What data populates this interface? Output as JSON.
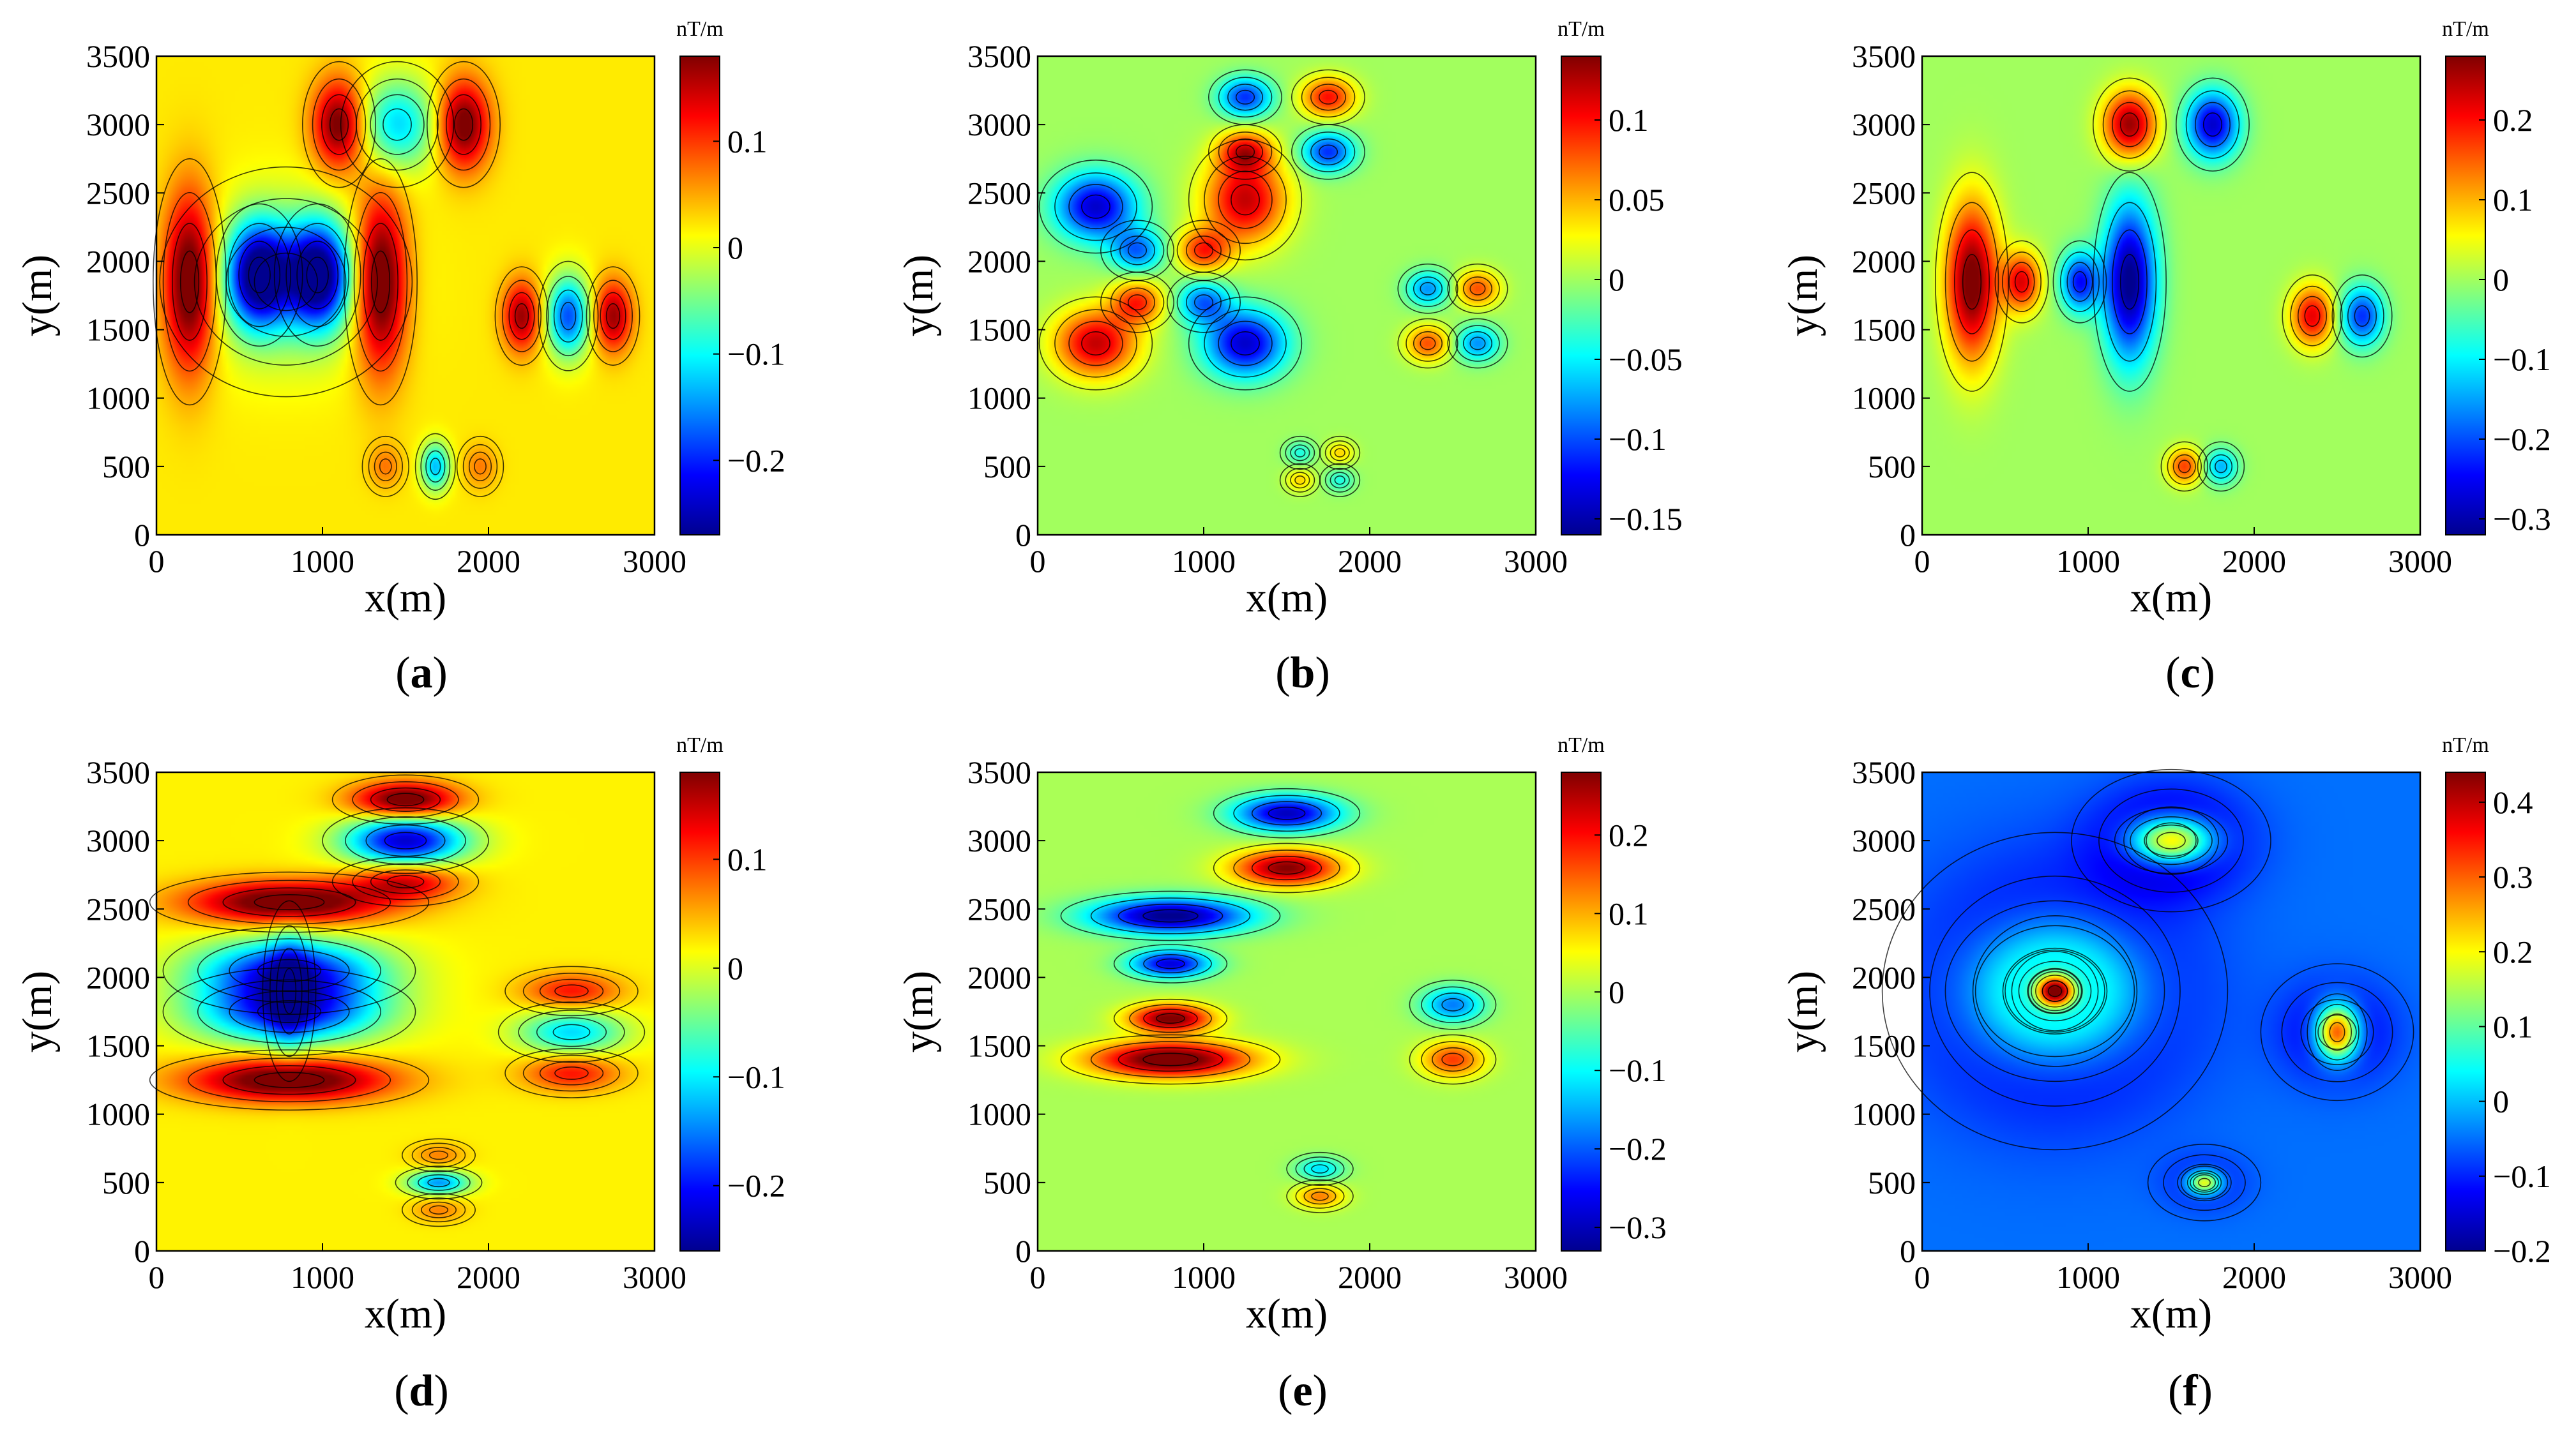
{
  "figure": {
    "label_parens": [
      "(",
      ")"
    ]
  },
  "colormap": [
    "#00008f",
    "#0000ff",
    "#0080ff",
    "#00ffff",
    "#80ff80",
    "#ffff00",
    "#ff8000",
    "#ff0000",
    "#800000"
  ],
  "chart_data": [
    {
      "id": "a",
      "type": "heatmap",
      "panel_label": "a",
      "xlabel": "x(m)",
      "ylabel": "y(m)",
      "xlim": [
        0,
        3000
      ],
      "ylim": [
        0,
        3500
      ],
      "xticks": [
        "0",
        "1000",
        "2000",
        "3000"
      ],
      "yticks": [
        "0",
        "500",
        "1000",
        "1500",
        "2000",
        "2500",
        "3000",
        "3500"
      ],
      "colorbar": {
        "unit": "nT/m",
        "range": [
          -0.27,
          0.18
        ],
        "ticks": [
          0.1,
          0,
          -0.1,
          -0.2
        ],
        "tick_labels": [
          "0.1",
          "0",
          "−0.1",
          "−0.2"
        ]
      },
      "background_value": 0.02,
      "anomalies": [
        {
          "x": 200,
          "y": 1850,
          "sx": 110,
          "sy": 450,
          "amp": 0.21
        },
        {
          "x": 1350,
          "y": 1850,
          "sx": 110,
          "sy": 450,
          "amp": 0.21
        },
        {
          "x": 620,
          "y": 1900,
          "sx": 130,
          "sy": 260,
          "amp": -0.29
        },
        {
          "x": 970,
          "y": 1900,
          "sx": 130,
          "sy": 260,
          "amp": -0.29
        },
        {
          "x": 780,
          "y": 1850,
          "sx": 380,
          "sy": 420,
          "amp": -0.07
        },
        {
          "x": 1100,
          "y": 3000,
          "sx": 110,
          "sy": 230,
          "amp": 0.18
        },
        {
          "x": 1850,
          "y": 3000,
          "sx": 110,
          "sy": 230,
          "amp": 0.18
        },
        {
          "x": 1450,
          "y": 3000,
          "sx": 170,
          "sy": 230,
          "amp": -0.14
        },
        {
          "x": 2200,
          "y": 1600,
          "sx": 80,
          "sy": 180,
          "amp": 0.15
        },
        {
          "x": 2750,
          "y": 1600,
          "sx": 80,
          "sy": 180,
          "amp": 0.15
        },
        {
          "x": 2480,
          "y": 1600,
          "sx": 90,
          "sy": 200,
          "amp": -0.2
        },
        {
          "x": 1380,
          "y": 500,
          "sx": 70,
          "sy": 110,
          "amp": 0.05
        },
        {
          "x": 1950,
          "y": 500,
          "sx": 70,
          "sy": 110,
          "amp": 0.05
        },
        {
          "x": 1680,
          "y": 500,
          "sx": 60,
          "sy": 120,
          "amp": -0.15
        }
      ]
    },
    {
      "id": "b",
      "type": "heatmap",
      "panel_label": "b",
      "xlabel": "x(m)",
      "ylabel": "y(m)",
      "xlim": [
        0,
        3000
      ],
      "ylim": [
        0,
        3500
      ],
      "xticks": [
        "0",
        "1000",
        "2000",
        "3000"
      ],
      "yticks": [
        "0",
        "500",
        "1000",
        "1500",
        "2000",
        "2500",
        "3000",
        "3500"
      ],
      "colorbar": {
        "unit": "nT/m",
        "range": [
          -0.16,
          0.14
        ],
        "ticks": [
          0.1,
          0.05,
          0,
          -0.05,
          -0.1,
          -0.15
        ],
        "tick_labels": [
          "0.1",
          "0.05",
          "0",
          "−0.05",
          "−0.1",
          "−0.15"
        ]
      },
      "background_value": 0.0,
      "anomalies": [
        {
          "x": 350,
          "y": 2400,
          "sx": 170,
          "sy": 170,
          "amp": -0.14
        },
        {
          "x": 600,
          "y": 2080,
          "sx": 110,
          "sy": 110,
          "amp": -0.09
        },
        {
          "x": 1250,
          "y": 2450,
          "sx": 170,
          "sy": 220,
          "amp": 0.12
        },
        {
          "x": 1000,
          "y": 2080,
          "sx": 110,
          "sy": 110,
          "amp": 0.09
        },
        {
          "x": 350,
          "y": 1400,
          "sx": 170,
          "sy": 170,
          "amp": 0.12
        },
        {
          "x": 600,
          "y": 1700,
          "sx": 110,
          "sy": 110,
          "amp": 0.09
        },
        {
          "x": 1250,
          "y": 1400,
          "sx": 170,
          "sy": 170,
          "amp": -0.14
        },
        {
          "x": 1000,
          "y": 1700,
          "sx": 110,
          "sy": 110,
          "amp": -0.09
        },
        {
          "x": 1250,
          "y": 3200,
          "sx": 110,
          "sy": 100,
          "amp": -0.11
        },
        {
          "x": 1750,
          "y": 3200,
          "sx": 110,
          "sy": 100,
          "amp": 0.1
        },
        {
          "x": 1750,
          "y": 2800,
          "sx": 110,
          "sy": 100,
          "amp": -0.11
        },
        {
          "x": 1250,
          "y": 2800,
          "sx": 110,
          "sy": 100,
          "amp": 0.1
        },
        {
          "x": 2350,
          "y": 1800,
          "sx": 90,
          "sy": 90,
          "amp": -0.08
        },
        {
          "x": 2650,
          "y": 1800,
          "sx": 90,
          "sy": 90,
          "amp": 0.08
        },
        {
          "x": 2650,
          "y": 1400,
          "sx": 90,
          "sy": 90,
          "amp": -0.08
        },
        {
          "x": 2350,
          "y": 1400,
          "sx": 90,
          "sy": 90,
          "amp": 0.08
        },
        {
          "x": 1580,
          "y": 600,
          "sx": 60,
          "sy": 60,
          "amp": -0.04
        },
        {
          "x": 1820,
          "y": 600,
          "sx": 60,
          "sy": 60,
          "amp": 0.04
        },
        {
          "x": 1820,
          "y": 400,
          "sx": 60,
          "sy": 60,
          "amp": -0.04
        },
        {
          "x": 1580,
          "y": 400,
          "sx": 60,
          "sy": 60,
          "amp": 0.04
        }
      ]
    },
    {
      "id": "c",
      "type": "heatmap",
      "panel_label": "c",
      "xlabel": "x(m)",
      "ylabel": "y(m)",
      "xlim": [
        0,
        3000
      ],
      "ylim": [
        0,
        3500
      ],
      "xticks": [
        "0",
        "1000",
        "2000",
        "3000"
      ],
      "yticks": [
        "0",
        "500",
        "1000",
        "1500",
        "2000",
        "2500",
        "3000",
        "3500"
      ],
      "colorbar": {
        "unit": "nT/m",
        "range": [
          -0.32,
          0.28
        ],
        "ticks": [
          0.2,
          0.1,
          0,
          -0.1,
          -0.2,
          -0.3
        ],
        "tick_labels": [
          "0.2",
          "0.1",
          "0",
          "−0.1",
          "−0.2",
          "−0.3"
        ]
      },
      "background_value": 0.0,
      "anomalies": [
        {
          "x": 300,
          "y": 1850,
          "sx": 110,
          "sy": 400,
          "amp": 0.3
        },
        {
          "x": 600,
          "y": 1850,
          "sx": 80,
          "sy": 150,
          "amp": 0.22
        },
        {
          "x": 950,
          "y": 1850,
          "sx": 80,
          "sy": 150,
          "amp": -0.24
        },
        {
          "x": 1250,
          "y": 1850,
          "sx": 110,
          "sy": 400,
          "amp": -0.33
        },
        {
          "x": 1250,
          "y": 3000,
          "sx": 110,
          "sy": 170,
          "amp": 0.27
        },
        {
          "x": 1750,
          "y": 3000,
          "sx": 110,
          "sy": 170,
          "amp": -0.28
        },
        {
          "x": 2350,
          "y": 1600,
          "sx": 90,
          "sy": 150,
          "amp": 0.22
        },
        {
          "x": 2650,
          "y": 1600,
          "sx": 90,
          "sy": 150,
          "amp": -0.22
        },
        {
          "x": 1580,
          "y": 500,
          "sx": 70,
          "sy": 90,
          "amp": 0.17
        },
        {
          "x": 1800,
          "y": 500,
          "sx": 70,
          "sy": 90,
          "amp": -0.14
        }
      ]
    },
    {
      "id": "d",
      "type": "heatmap",
      "panel_label": "d",
      "xlabel": "x(m)",
      "ylabel": "y(m)",
      "xlim": [
        0,
        3000
      ],
      "ylim": [
        0,
        3500
      ],
      "xticks": [
        "0",
        "1000",
        "2000",
        "3000"
      ],
      "yticks": [
        "0",
        "500",
        "1000",
        "1500",
        "2000",
        "2500",
        "3000",
        "3500"
      ],
      "colorbar": {
        "unit": "nT/m",
        "range": [
          -0.26,
          0.18
        ],
        "ticks": [
          0.1,
          0,
          -0.1,
          -0.2
        ],
        "tick_labels": [
          "0.1",
          "0",
          "−0.1",
          "−0.2"
        ]
      },
      "background_value": 0.02,
      "anomalies": [
        {
          "x": 800,
          "y": 2550,
          "sx": 420,
          "sy": 110,
          "amp": 0.2
        },
        {
          "x": 800,
          "y": 1250,
          "sx": 420,
          "sy": 110,
          "amp": 0.2
        },
        {
          "x": 800,
          "y": 1750,
          "sx": 380,
          "sy": 160,
          "amp": -0.22
        },
        {
          "x": 800,
          "y": 2050,
          "sx": 380,
          "sy": 160,
          "amp": -0.22
        },
        {
          "x": 800,
          "y": 1900,
          "sx": 80,
          "sy": 330,
          "amp": -0.08
        },
        {
          "x": 1500,
          "y": 3300,
          "sx": 220,
          "sy": 90,
          "amp": 0.19
        },
        {
          "x": 1500,
          "y": 3000,
          "sx": 250,
          "sy": 120,
          "amp": -0.25
        },
        {
          "x": 1500,
          "y": 2700,
          "sx": 220,
          "sy": 90,
          "amp": 0.12
        },
        {
          "x": 2500,
          "y": 1900,
          "sx": 200,
          "sy": 90,
          "amp": 0.1
        },
        {
          "x": 2500,
          "y": 1600,
          "sx": 220,
          "sy": 110,
          "amp": -0.13
        },
        {
          "x": 2500,
          "y": 1300,
          "sx": 200,
          "sy": 90,
          "amp": 0.1
        },
        {
          "x": 1700,
          "y": 700,
          "sx": 110,
          "sy": 60,
          "amp": 0.05
        },
        {
          "x": 1700,
          "y": 500,
          "sx": 130,
          "sy": 60,
          "amp": -0.16
        },
        {
          "x": 1700,
          "y": 300,
          "sx": 110,
          "sy": 60,
          "amp": 0.05
        }
      ]
    },
    {
      "id": "e",
      "type": "heatmap",
      "panel_label": "e",
      "xlabel": "x(m)",
      "ylabel": "y(m)",
      "xlim": [
        0,
        3000
      ],
      "ylim": [
        0,
        3500
      ],
      "xticks": [
        "0",
        "1000",
        "2000",
        "3000"
      ],
      "yticks": [
        "0",
        "500",
        "1000",
        "1500",
        "2000",
        "2500",
        "3000",
        "3500"
      ],
      "colorbar": {
        "unit": "nT/m",
        "range": [
          -0.33,
          0.28
        ],
        "ticks": [
          0.2,
          0.1,
          0,
          -0.1,
          -0.2,
          -0.3
        ],
        "tick_labels": [
          "0.2",
          "0.1",
          "0",
          "−0.1",
          "−0.2",
          "−0.3"
        ]
      },
      "background_value": 0.0,
      "anomalies": [
        {
          "x": 800,
          "y": 2450,
          "sx": 330,
          "sy": 90,
          "amp": -0.34
        },
        {
          "x": 800,
          "y": 2100,
          "sx": 170,
          "sy": 70,
          "amp": -0.28
        },
        {
          "x": 800,
          "y": 1700,
          "sx": 170,
          "sy": 70,
          "amp": 0.3
        },
        {
          "x": 800,
          "y": 1400,
          "sx": 330,
          "sy": 90,
          "amp": 0.33
        },
        {
          "x": 1500,
          "y": 3200,
          "sx": 220,
          "sy": 90,
          "amp": -0.3
        },
        {
          "x": 1500,
          "y": 2800,
          "sx": 220,
          "sy": 90,
          "amp": 0.28
        },
        {
          "x": 2500,
          "y": 1800,
          "sx": 130,
          "sy": 90,
          "amp": -0.18
        },
        {
          "x": 2500,
          "y": 1400,
          "sx": 130,
          "sy": 90,
          "amp": 0.17
        },
        {
          "x": 1700,
          "y": 600,
          "sx": 100,
          "sy": 60,
          "amp": -0.12
        },
        {
          "x": 1700,
          "y": 400,
          "sx": 100,
          "sy": 60,
          "amp": 0.13
        }
      ]
    },
    {
      "id": "f",
      "type": "heatmap",
      "panel_label": "f",
      "xlabel": "x(m)",
      "ylabel": "y(m)",
      "xlim": [
        0,
        3000
      ],
      "ylim": [
        0,
        3500
      ],
      "xticks": [
        "0",
        "1000",
        "2000",
        "3000"
      ],
      "yticks": [
        "0",
        "500",
        "1000",
        "1500",
        "2000",
        "2500",
        "3000",
        "3500"
      ],
      "colorbar": {
        "unit": "nT/m",
        "range": [
          -0.2,
          0.44
        ],
        "ticks": [
          0.4,
          0.3,
          0.2,
          0.1,
          0,
          -0.1,
          -0.2
        ],
        "tick_labels": [
          "0.4",
          "0.3",
          "0.2",
          "0.1",
          "0",
          "−0.1",
          "−0.2"
        ]
      },
      "background_value": -0.05,
      "anomalies": [
        {
          "x": 800,
          "y": 1900,
          "sx": 520,
          "sy": 580,
          "amp": -0.16
        },
        {
          "x": 800,
          "y": 1900,
          "sx": 330,
          "sy": 330,
          "amp": 0.38
        },
        {
          "x": 800,
          "y": 1900,
          "sx": 150,
          "sy": 150,
          "amp": -0.22
        },
        {
          "x": 800,
          "y": 1900,
          "sx": 80,
          "sy": 80,
          "amp": 0.55
        },
        {
          "x": 1500,
          "y": 3000,
          "sx": 300,
          "sy": 260,
          "amp": -0.14
        },
        {
          "x": 1500,
          "y": 3000,
          "sx": 170,
          "sy": 120,
          "amp": 0.4
        },
        {
          "x": 2500,
          "y": 1600,
          "sx": 230,
          "sy": 250,
          "amp": -0.1
        },
        {
          "x": 2500,
          "y": 1600,
          "sx": 90,
          "sy": 140,
          "amp": 0.45
        },
        {
          "x": 1700,
          "y": 500,
          "sx": 170,
          "sy": 140,
          "amp": -0.06
        },
        {
          "x": 1700,
          "y": 500,
          "sx": 70,
          "sy": 60,
          "amp": 0.3
        }
      ]
    }
  ]
}
